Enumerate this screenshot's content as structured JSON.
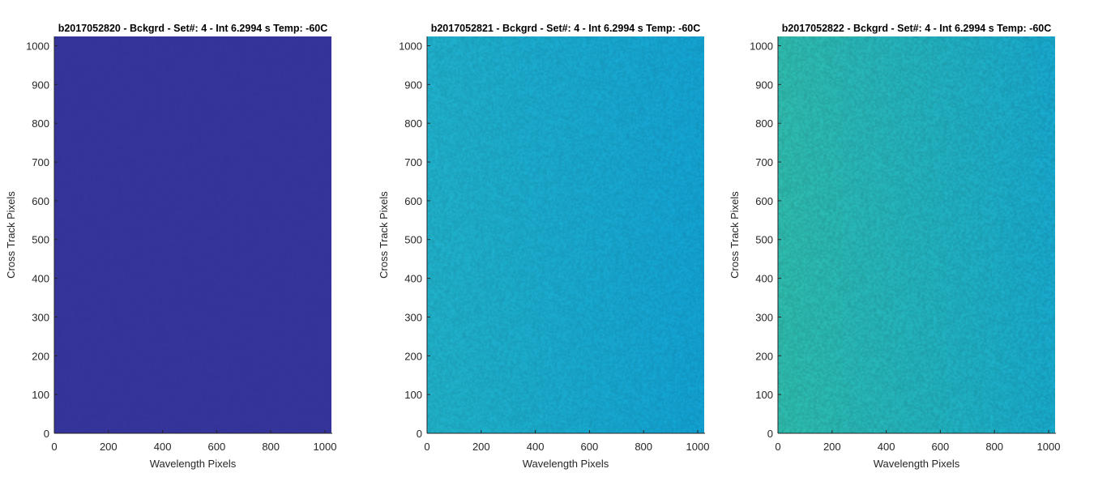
{
  "chart_data": [
    {
      "type": "heatmap",
      "title": "b2017052820 - Bckgrd - Set#: 4 - Int 6.2994 s Temp: -60C",
      "xlabel": "Wavelength Pixels",
      "ylabel": "Cross Track Pixels",
      "xlim": [
        0,
        1024
      ],
      "ylim": [
        0,
        1024
      ],
      "xticks": [
        0,
        200,
        400,
        600,
        800,
        1000
      ],
      "yticks": [
        0,
        100,
        200,
        300,
        400,
        500,
        600,
        700,
        800,
        900,
        1000
      ],
      "fill": {
        "top_left": "#35349a",
        "top_right": "#35349a",
        "bottom_left": "#35349a",
        "bottom_right": "#35349a"
      },
      "noise": 0.015
    },
    {
      "type": "heatmap",
      "title": "b2017052821 - Bckgrd - Set#: 4 - Int 6.2994 s Temp: -60C",
      "xlabel": "Wavelength Pixels",
      "ylabel": "Cross Track Pixels",
      "xlim": [
        0,
        1024
      ],
      "ylim": [
        0,
        1024
      ],
      "xticks": [
        0,
        200,
        400,
        600,
        800,
        1000
      ],
      "yticks": [
        0,
        100,
        200,
        300,
        400,
        500,
        600,
        700,
        800,
        900,
        1000
      ],
      "fill": {
        "top_left": "#1ea9c4",
        "top_right": "#139ecb",
        "bottom_left": "#1fabc1",
        "bottom_right": "#119ccc"
      },
      "noise": 0.06
    },
    {
      "type": "heatmap",
      "title": "b2017052822 - Bckgrd - Set#: 4 - Int 6.2994 s Temp: -60C",
      "xlabel": "Wavelength Pixels",
      "ylabel": "Cross Track Pixels",
      "xlim": [
        0,
        1024
      ],
      "ylim": [
        0,
        1024
      ],
      "xticks": [
        0,
        200,
        400,
        600,
        800,
        1000
      ],
      "yticks": [
        0,
        100,
        200,
        300,
        400,
        500,
        600,
        700,
        800,
        900,
        1000
      ],
      "fill": {
        "top_left": "#2db3a7",
        "top_right": "#17a2c6",
        "bottom_left": "#2cb4a6",
        "bottom_right": "#17a3c4"
      },
      "noise": 0.07
    }
  ]
}
